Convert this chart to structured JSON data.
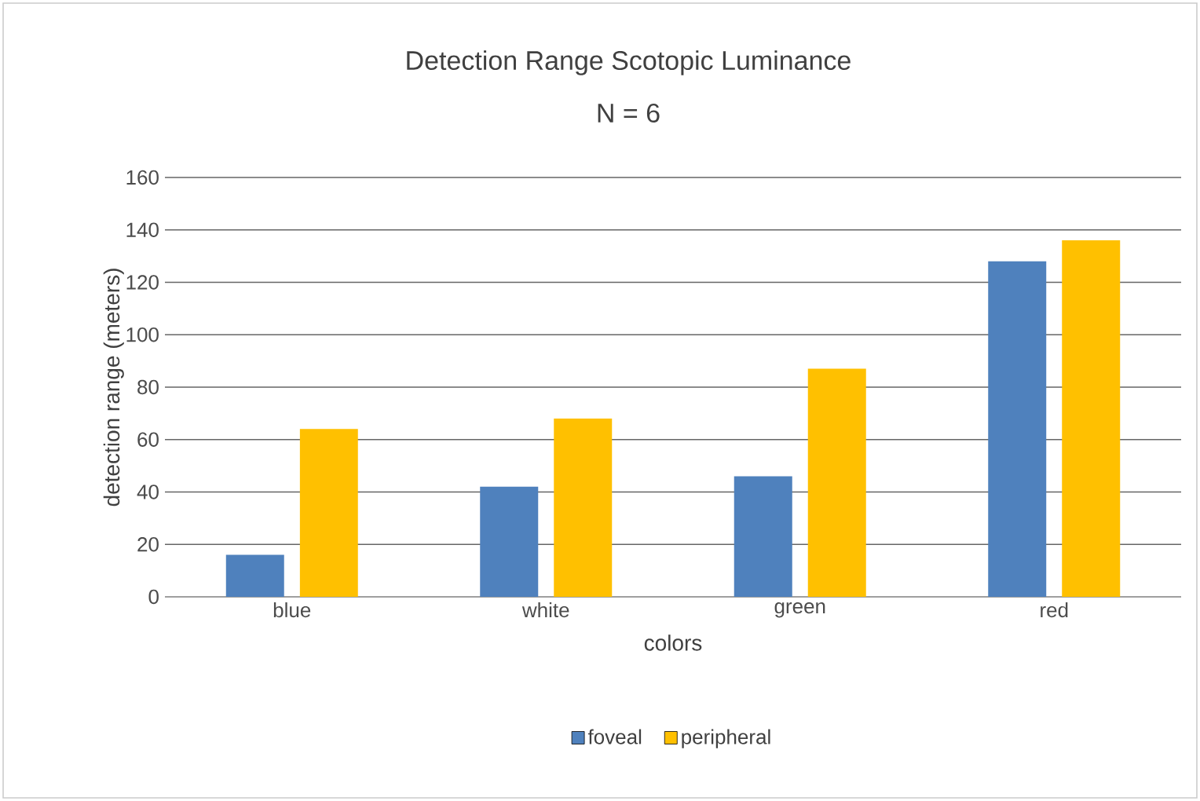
{
  "chart_data": {
    "type": "bar",
    "title": "Detection Range Scotopic Luminance",
    "subtitle": "N = 6",
    "xlabel": "colors",
    "ylabel": "detection range (meters)",
    "categories": [
      "blue",
      "white",
      "green",
      "red"
    ],
    "series": [
      {
        "name": "foveal",
        "color": "#4f81bd",
        "values": [
          16,
          42,
          46,
          128
        ]
      },
      {
        "name": "peripheral",
        "color": "#ffc000",
        "values": [
          64,
          68,
          87,
          136
        ]
      }
    ],
    "ylim": [
      0,
      160
    ],
    "yticks": [
      0,
      20,
      40,
      60,
      80,
      100,
      120,
      140,
      160
    ],
    "grid": "y",
    "legend": "bottom"
  }
}
